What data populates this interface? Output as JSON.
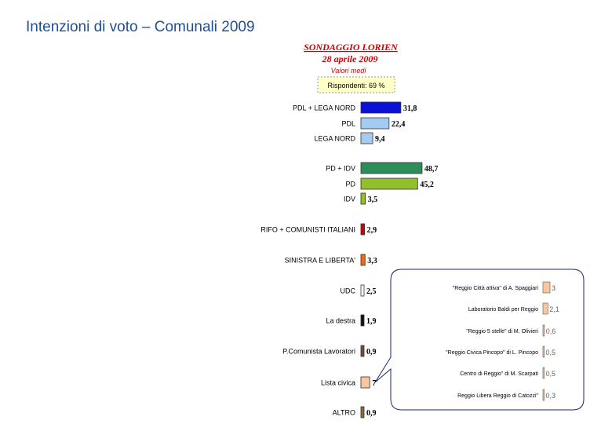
{
  "header": {
    "title": "Intenzioni di voto – Comunali 2009",
    "poll_name": "SONDAGGIO LORIEN",
    "poll_date": "28 aprile 2009",
    "values_note": "Valori medi",
    "respondents": "Rispondenti: 69 %"
  },
  "colors": {
    "title": "#1f4e96",
    "poll_text": "#d00000",
    "respondents_box_fill": "#ffffc8"
  },
  "chart_data": {
    "type": "bar",
    "orientation": "horizontal",
    "title": "SONDAGGIO LORIEN",
    "subtitle": "28 aprile 2009",
    "categories": [
      "PDL + LEGA NORD",
      "PDL",
      "LEGA NORD",
      "PD + IDV",
      "PD",
      "IDV",
      "RIFO + COMUNISTI ITALIANI",
      "SINISTRA E LIBERTA'",
      "UDC",
      "La destra",
      "P.Comunista Lavoratori",
      "Lista civica",
      "ALTRO"
    ],
    "values": [
      31.8,
      22.4,
      9.4,
      48.7,
      45.2,
      3.5,
      2.9,
      3.3,
      2.5,
      1.9,
      0.9,
      7,
      0.9
    ],
    "value_labels": [
      "31,8",
      "22,4",
      "9,4",
      "48,7",
      "45,2",
      "3,5",
      "2,9",
      "3,3",
      "2,5",
      "1,9",
      "0,9",
      "7",
      "0,9"
    ],
    "bar_colors": [
      "#0b10d9",
      "#a5cbf3",
      "#a5cbf3",
      "#2e8b5a",
      "#92c02a",
      "#92c02a",
      "#d40000",
      "#ee6a16",
      "#ffffff",
      "#111111",
      "#7a4a3a",
      "#f8c7a0",
      "#8a6a40"
    ],
    "grid": false,
    "legend": "none",
    "callout": {
      "title": "Lista civica",
      "categories": [
        "\"Reggio Città attiva\" di A. Spaggiari",
        "Laboratorio Baldi per Reggio",
        "\"Reggio 5 stelle\" di M. Olivieri",
        "\"Reggio Civica Pincopo\" di L. Pincopo",
        "Centro di Reggio\" di M. Scarpati",
        "Reggio Libera Reggio di Catozzi\""
      ],
      "values": [
        3,
        2.1,
        0.6,
        0.5,
        0.5,
        0.3
      ],
      "value_labels": [
        "3",
        "2,1",
        "0,6",
        "0,5",
        "0,5",
        "0,3"
      ],
      "bar_color": "#f8c7a0"
    }
  }
}
